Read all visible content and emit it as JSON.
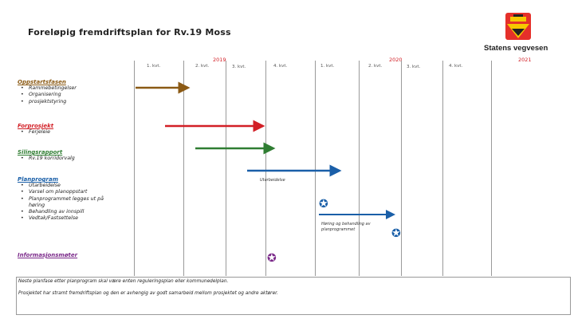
{
  "title": "Foreløpig fremdriftsplan for Rv.19 Moss",
  "brand": "Statens vegvesen",
  "years": [
    "2019",
    "2020",
    "2021"
  ],
  "quarters": [
    "1. kvt.",
    "2. kvt.",
    "3. kvt.",
    "4. kvt.",
    "1. kvt.",
    "2. kvt.",
    "3. kvt.",
    "4. kvt."
  ],
  "phases": [
    {
      "name": "Oppstartsfasen",
      "color": "#8b5a14",
      "items": [
        "Rammebetingelser",
        "Organisering",
        "prosjektstyring"
      ]
    },
    {
      "name": "Forprosjekt",
      "color": "#d21f26",
      "items": [
        "Ferjeleie"
      ]
    },
    {
      "name": "Silingsrapport",
      "color": "#2f7d32",
      "items": [
        "Rv.19 korridorvalg"
      ]
    },
    {
      "name": "Planprogram",
      "color": "#1a5fa8",
      "items": [
        "Utarbeidelse",
        "Varsel om planoppstart",
        "Planprogrammet legges ut på høring",
        "Behandling av innspill",
        "Vedtak/Fastsettelse"
      ]
    },
    {
      "name": "Informasjonsmøter",
      "color": "#7b2a8a",
      "items": []
    }
  ],
  "notes": {
    "utarbeidelse": "Utarbeidelse",
    "horing": "Høring og behandling av planprogrammet"
  },
  "colors": {
    "oppstart": "#8b5a14",
    "forprosjekt": "#d21f26",
    "siling": "#2f7d32",
    "planprogram": "#1a5fa8",
    "info": "#7b2a8a",
    "star_blue": "#1a5fa8",
    "star_purple": "#7b2a8a",
    "year": "#d21f26"
  },
  "box": {
    "line1": "Neste planfase etter planprogram skal være enten reguleringsplan eller kommunedelplan.",
    "line2": "Prosjektet har stramt fremdriftsplan og den er avhengig av godt samarbeid mellom prosjektet og andre aktører."
  }
}
